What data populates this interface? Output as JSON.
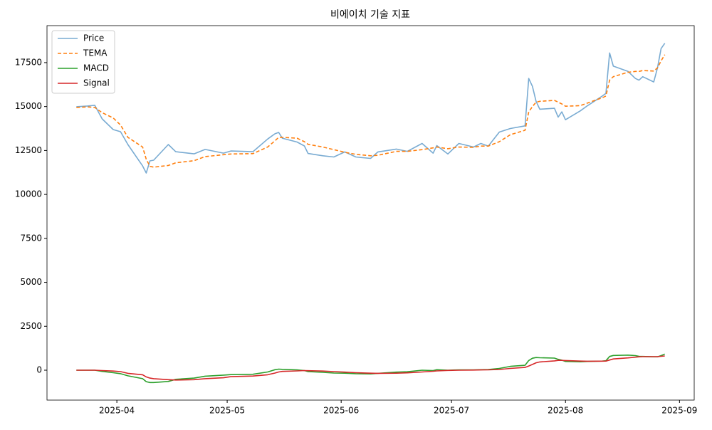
{
  "chart_data": {
    "type": "line",
    "title": "비에이치 기술 지표",
    "x": [
      "2025-03-21",
      "2025-03-24",
      "2025-03-26",
      "2025-03-28",
      "2025-03-31",
      "2025-04-02",
      "2025-04-04",
      "2025-04-08",
      "2025-04-09",
      "2025-04-10",
      "2025-04-11",
      "2025-04-15",
      "2025-04-17",
      "2025-04-22",
      "2025-04-25",
      "2025-04-30",
      "2025-05-02",
      "2025-05-08",
      "2025-05-12",
      "2025-05-14",
      "2025-05-15",
      "2025-05-16",
      "2025-05-20",
      "2025-05-22",
      "2025-05-23",
      "2025-05-27",
      "2025-05-30",
      "2025-06-02",
      "2025-06-05",
      "2025-06-09",
      "2025-06-11",
      "2025-06-16",
      "2025-06-19",
      "2025-06-23",
      "2025-06-26",
      "2025-06-27",
      "2025-06-30",
      "2025-07-03",
      "2025-07-07",
      "2025-07-09",
      "2025-07-11",
      "2025-07-14",
      "2025-07-17",
      "2025-07-21",
      "2025-07-22",
      "2025-07-23",
      "2025-07-24",
      "2025-07-25",
      "2025-07-29",
      "2025-07-30",
      "2025-07-31",
      "2025-08-01",
      "2025-08-05",
      "2025-08-07",
      "2025-08-11",
      "2025-08-12",
      "2025-08-13",
      "2025-08-14",
      "2025-08-18",
      "2025-08-20",
      "2025-08-21",
      "2025-08-22",
      "2025-08-25",
      "2025-08-26",
      "2025-08-27",
      "2025-08-28"
    ],
    "series": [
      {
        "name": "Price",
        "color": "#79abd2",
        "values": [
          14990,
          15030,
          15070,
          14300,
          13690,
          13570,
          12840,
          11620,
          11220,
          11910,
          11950,
          12840,
          12430,
          12310,
          12560,
          12350,
          12470,
          12430,
          13150,
          13450,
          13530,
          13200,
          12980,
          12760,
          12330,
          12200,
          12130,
          12420,
          12130,
          12050,
          12420,
          12580,
          12450,
          12900,
          12350,
          12780,
          12300,
          12900,
          12700,
          12900,
          12750,
          13550,
          13750,
          13900,
          16600,
          16150,
          15300,
          14850,
          14900,
          14400,
          14700,
          14250,
          14750,
          15050,
          15600,
          15750,
          18050,
          17300,
          17000,
          16600,
          16500,
          16700,
          16400,
          17200,
          18300,
          18600
        ]
      },
      {
        "name": "TEMA",
        "color": "#ff7f0e",
        "linestyle": "dashed",
        "values": [
          14950,
          14980,
          14950,
          14650,
          14350,
          13950,
          13250,
          12700,
          12000,
          11600,
          11550,
          11650,
          11800,
          11920,
          12150,
          12260,
          12300,
          12320,
          12700,
          13050,
          13250,
          13250,
          13200,
          13000,
          12850,
          12700,
          12550,
          12400,
          12280,
          12200,
          12230,
          12450,
          12450,
          12550,
          12650,
          12700,
          12600,
          12700,
          12680,
          12750,
          12750,
          13000,
          13400,
          13650,
          14700,
          15000,
          15250,
          15300,
          15350,
          15250,
          15150,
          15020,
          15050,
          15200,
          15500,
          15600,
          16500,
          16700,
          16950,
          17000,
          17000,
          17050,
          17020,
          17200,
          17600,
          17950
        ]
      },
      {
        "name": "MACD",
        "color": "#2ca02c",
        "values": [
          0,
          0,
          0,
          -70,
          -140,
          -200,
          -320,
          -480,
          -650,
          -700,
          -700,
          -640,
          -520,
          -450,
          -340,
          -280,
          -250,
          -230,
          -100,
          30,
          60,
          50,
          20,
          -20,
          -80,
          -120,
          -160,
          -170,
          -200,
          -210,
          -180,
          -110,
          -90,
          0,
          -20,
          30,
          0,
          20,
          20,
          30,
          40,
          100,
          220,
          280,
          550,
          680,
          720,
          710,
          690,
          620,
          570,
          500,
          480,
          500,
          520,
          540,
          780,
          840,
          860,
          830,
          790,
          780,
          760,
          760,
          830,
          920
        ]
      },
      {
        "name": "Signal",
        "color": "#d62728",
        "values": [
          0,
          0,
          0,
          -20,
          -50,
          -80,
          -180,
          -260,
          -380,
          -450,
          -480,
          -540,
          -560,
          -540,
          -480,
          -430,
          -370,
          -330,
          -260,
          -160,
          -100,
          -70,
          -40,
          -20,
          -30,
          -50,
          -80,
          -110,
          -140,
          -170,
          -180,
          -170,
          -150,
          -100,
          -60,
          -40,
          -10,
          0,
          10,
          15,
          20,
          40,
          100,
          160,
          240,
          330,
          420,
          470,
          530,
          560,
          560,
          550,
          520,
          510,
          515,
          520,
          580,
          640,
          700,
          740,
          760,
          770,
          770,
          770,
          790,
          810
        ]
      }
    ],
    "xlim": [
      "2025-03-13",
      "2025-09-05"
    ],
    "xticks": [
      {
        "value": "2025-04-01",
        "label": "2025-04"
      },
      {
        "value": "2025-05-01",
        "label": "2025-05"
      },
      {
        "value": "2025-06-01",
        "label": "2025-06"
      },
      {
        "value": "2025-07-01",
        "label": "2025-07"
      },
      {
        "value": "2025-08-01",
        "label": "2025-08"
      },
      {
        "value": "2025-09-01",
        "label": "2025-09"
      }
    ],
    "ylim": [
      -1701,
      19604
    ],
    "yticks": [
      0,
      2500,
      5000,
      7500,
      10000,
      12500,
      15000,
      17500
    ],
    "legend": "upper left"
  }
}
